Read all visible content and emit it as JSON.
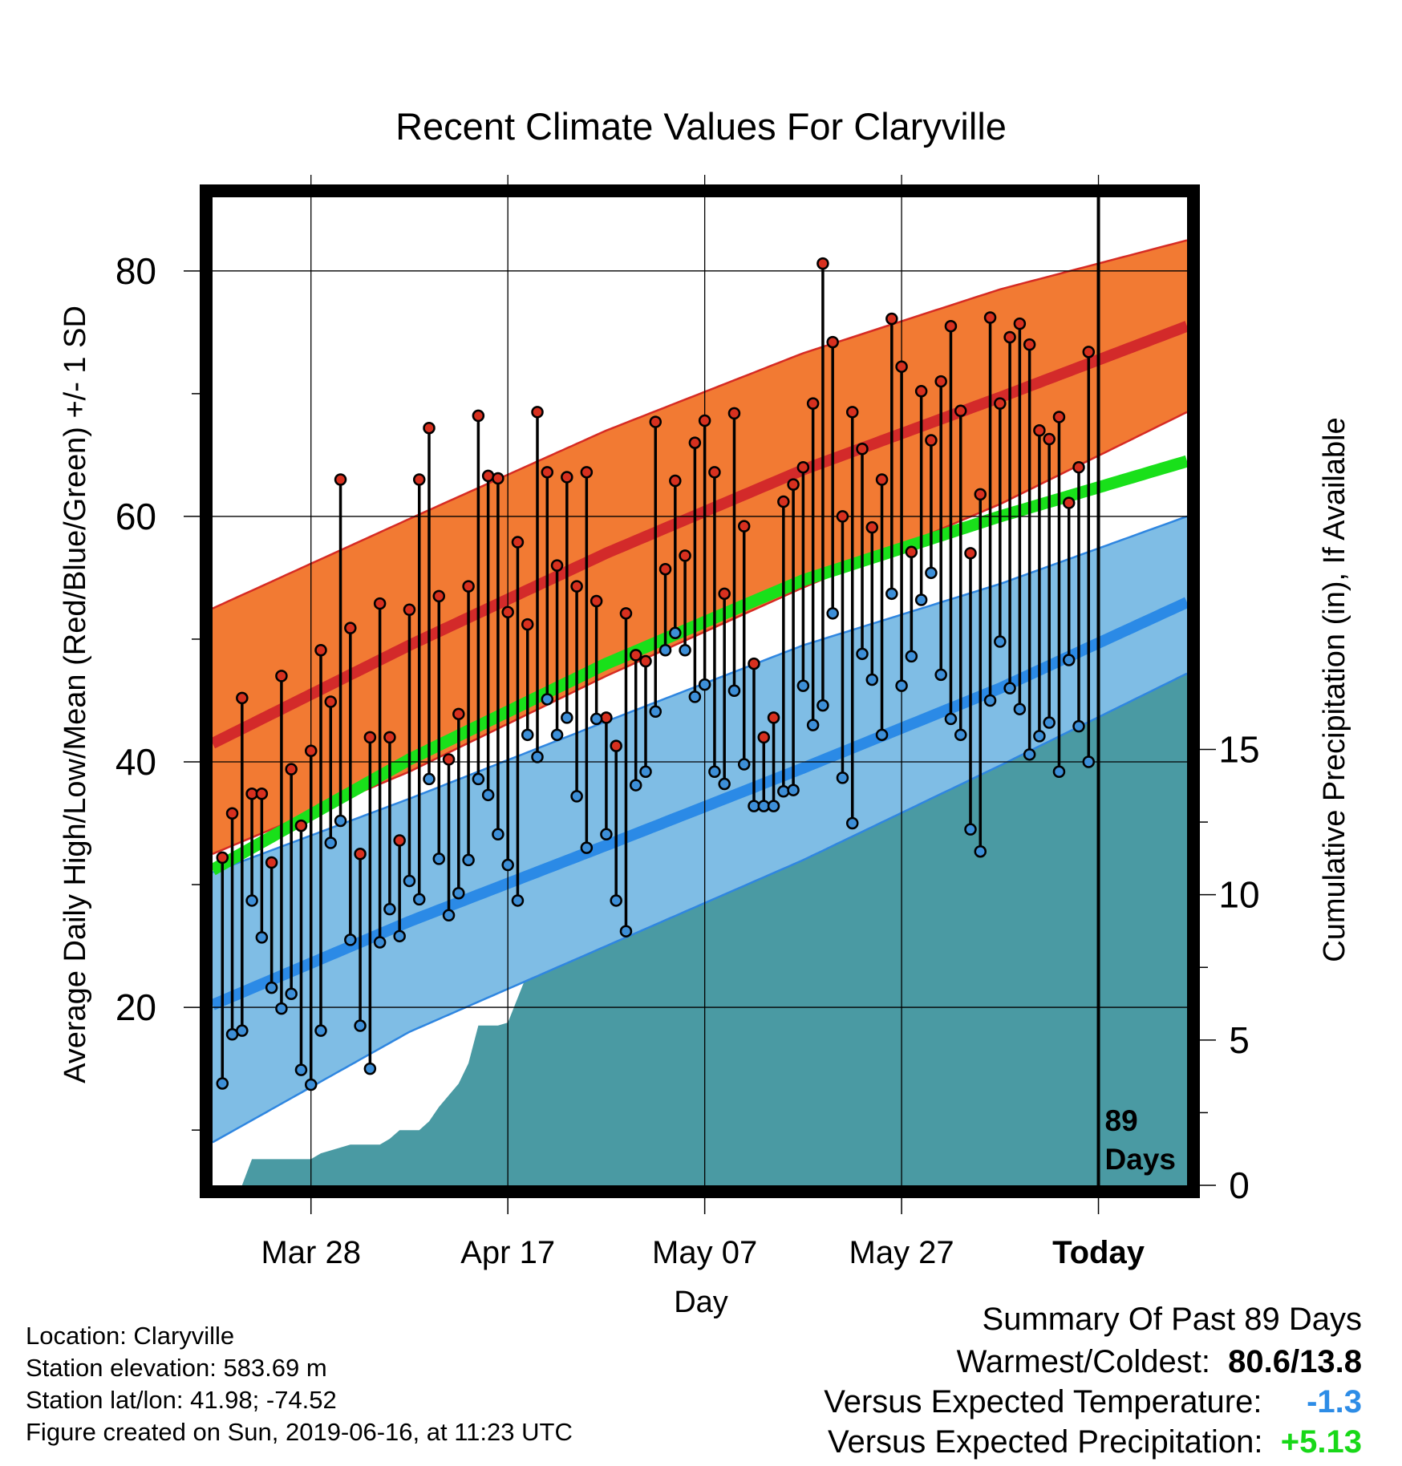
{
  "chart_data": {
    "type": "line",
    "title": "Recent Climate Values For Claryville",
    "xlabel": "Day",
    "ylabel": "Average Daily High/Low/Mean (Red/Blue/Green) +/- 1 SD",
    "y2label": "Cumulative Precipitation (in), If Available",
    "x_tick_labels": [
      "Mar 28",
      "Apr 17",
      "May 07",
      "May 27",
      "Today"
    ],
    "x_tick_days": [
      10,
      30,
      50,
      70,
      90
    ],
    "xlim": [
      0,
      99
    ],
    "ylim": [
      5.5,
      86
    ],
    "y_ticks": [
      20,
      40,
      60,
      80
    ],
    "y2lim": [
      0,
      34
    ],
    "y2_ticks": [
      0,
      5,
      10,
      15
    ],
    "grid": true,
    "today_day": 90,
    "days_label": "89\nDays",
    "normal_high": {
      "days": [
        0,
        20,
        40,
        60,
        80,
        99
      ],
      "mean": [
        41.5,
        49.5,
        57.0,
        63.8,
        69.7,
        75.5
      ],
      "upper": [
        52.5,
        59.8,
        67.0,
        73.3,
        78.5,
        82.5
      ],
      "lower": [
        32.5,
        39.2,
        47.0,
        54.2,
        61.0,
        68.5
      ]
    },
    "normal_low": {
      "days": [
        0,
        20,
        40,
        60,
        80,
        99
      ],
      "mean": [
        20.2,
        27.0,
        33.2,
        39.5,
        46.0,
        53.0
      ],
      "upper": [
        31.0,
        37.0,
        43.3,
        49.5,
        54.5,
        60.0
      ],
      "lower": [
        9.0,
        18.0,
        25.0,
        32.0,
        39.7,
        47.2
      ]
    },
    "normal_mean": {
      "days": [
        0,
        20,
        40,
        60,
        80,
        99
      ],
      "values": [
        31.2,
        40.2,
        48.0,
        54.8,
        60.0,
        64.5
      ]
    },
    "series": [
      {
        "name": "High",
        "values": [
          32.2,
          35.8,
          45.2,
          37.4,
          37.4,
          31.8,
          47.0,
          39.4,
          34.8,
          40.9,
          49.1,
          44.9,
          63.0,
          50.9,
          32.5,
          42.0,
          52.9,
          42.0,
          33.6,
          52.4,
          63.0,
          67.2,
          53.5,
          40.2,
          43.9,
          54.3,
          68.2,
          63.3,
          63.1,
          52.2,
          57.9,
          51.2,
          68.5,
          63.6,
          56.0,
          63.2,
          54.3,
          63.6,
          53.1,
          43.6,
          41.3,
          52.1,
          48.7,
          48.2,
          67.7,
          55.7,
          62.9,
          56.8,
          66.0,
          67.8,
          63.6,
          53.7,
          68.4,
          59.2,
          48.0,
          42.0,
          43.6,
          61.2,
          62.6,
          64.0,
          69.2,
          80.6,
          74.2,
          60.0,
          68.5,
          65.5,
          59.1,
          63.0,
          76.1,
          72.2,
          57.1,
          70.2,
          66.2,
          71.0,
          75.5,
          68.6,
          57.0,
          61.8,
          76.2,
          69.2,
          74.6,
          75.7,
          74.0,
          67.0,
          66.3,
          68.1,
          61.1,
          64.0,
          73.4
        ],
        "color": "#d7301f"
      },
      {
        "name": "Low",
        "values": [
          13.8,
          17.8,
          18.1,
          28.7,
          25.7,
          21.6,
          19.9,
          21.1,
          14.9,
          13.7,
          18.1,
          33.4,
          35.2,
          25.5,
          18.5,
          15.0,
          25.3,
          28.0,
          25.8,
          30.3,
          28.8,
          38.6,
          32.1,
          27.5,
          29.3,
          32.0,
          38.6,
          37.3,
          34.1,
          31.6,
          28.7,
          42.2,
          40.4,
          45.1,
          42.2,
          43.6,
          37.2,
          33.0,
          43.5,
          34.1,
          28.7,
          26.2,
          38.1,
          39.2,
          44.1,
          49.1,
          50.5,
          49.1,
          45.3,
          46.3,
          39.2,
          38.2,
          45.8,
          39.8,
          36.4,
          36.4,
          36.4,
          37.6,
          37.7,
          46.2,
          43.0,
          44.6,
          52.1,
          38.7,
          35.0,
          48.8,
          46.7,
          42.2,
          53.7,
          46.2,
          48.6,
          53.2,
          55.4,
          47.1,
          43.5,
          42.2,
          34.5,
          32.7,
          45.0,
          49.8,
          46.0,
          44.3,
          40.6,
          42.1,
          43.2,
          39.2,
          48.3,
          42.9,
          40.0
        ],
        "color": "#3d8fd8"
      }
    ],
    "precip": {
      "days": [
        0,
        3,
        4,
        10,
        11,
        12,
        13,
        14,
        17,
        18,
        19,
        21,
        22,
        23,
        25,
        26,
        27,
        28,
        29,
        30,
        32,
        33,
        34,
        35,
        38,
        40,
        41,
        42,
        43,
        44,
        46,
        47,
        48,
        49,
        50,
        53,
        54,
        55,
        56,
        57,
        58,
        59,
        61,
        62,
        63,
        64,
        66,
        67,
        68,
        69,
        71,
        72,
        73,
        74,
        76,
        77,
        78,
        79,
        81,
        82,
        83,
        84,
        85,
        86,
        87,
        90,
        99
      ],
      "values": [
        0.0,
        0.0,
        0.9,
        0.9,
        1.1,
        1.2,
        1.3,
        1.4,
        1.4,
        1.6,
        1.9,
        1.9,
        2.2,
        2.7,
        3.5,
        4.2,
        5.5,
        5.5,
        5.5,
        5.6,
        7.3,
        8.2,
        8.2,
        8.2,
        8.2,
        8.7,
        9.2,
        9.4,
        9.6,
        9.7,
        9.8,
        10.0,
        10.3,
        10.6,
        10.8,
        10.8,
        11.0,
        11.1,
        12.0,
        12.4,
        12.5,
        12.6,
        12.7,
        13.1,
        13.3,
        13.3,
        13.5,
        14.2,
        14.3,
        14.4,
        14.8,
        14.9,
        15.1,
        15.2,
        15.2,
        15.2,
        15.2,
        15.4,
        15.4,
        15.4,
        16.4,
        16.6,
        16.6,
        17.5,
        17.7,
        17.8,
        17.8
      ],
      "color": "#4a9aa3"
    }
  },
  "footer": {
    "location": "Location: Claryville",
    "elevation": "Station elevation: 583.69 m",
    "latlon": "Station lat/lon: 41.98; -74.52",
    "created": "Figure created on Sun, 2019-06-16, at 11:23 UTC"
  },
  "summary": {
    "heading": "Summary Of Past 89 Days",
    "warmest_coldest_label": "Warmest/Coldest:",
    "warmest_coldest_value": "80.6/13.8",
    "temp_label": "Versus Expected Temperature:",
    "temp_value": "-1.3",
    "temp_color": "#2d8ce6",
    "precip_label": "Versus Expected Precipitation:",
    "precip_value": "+5.13",
    "precip_color": "#18d818"
  }
}
